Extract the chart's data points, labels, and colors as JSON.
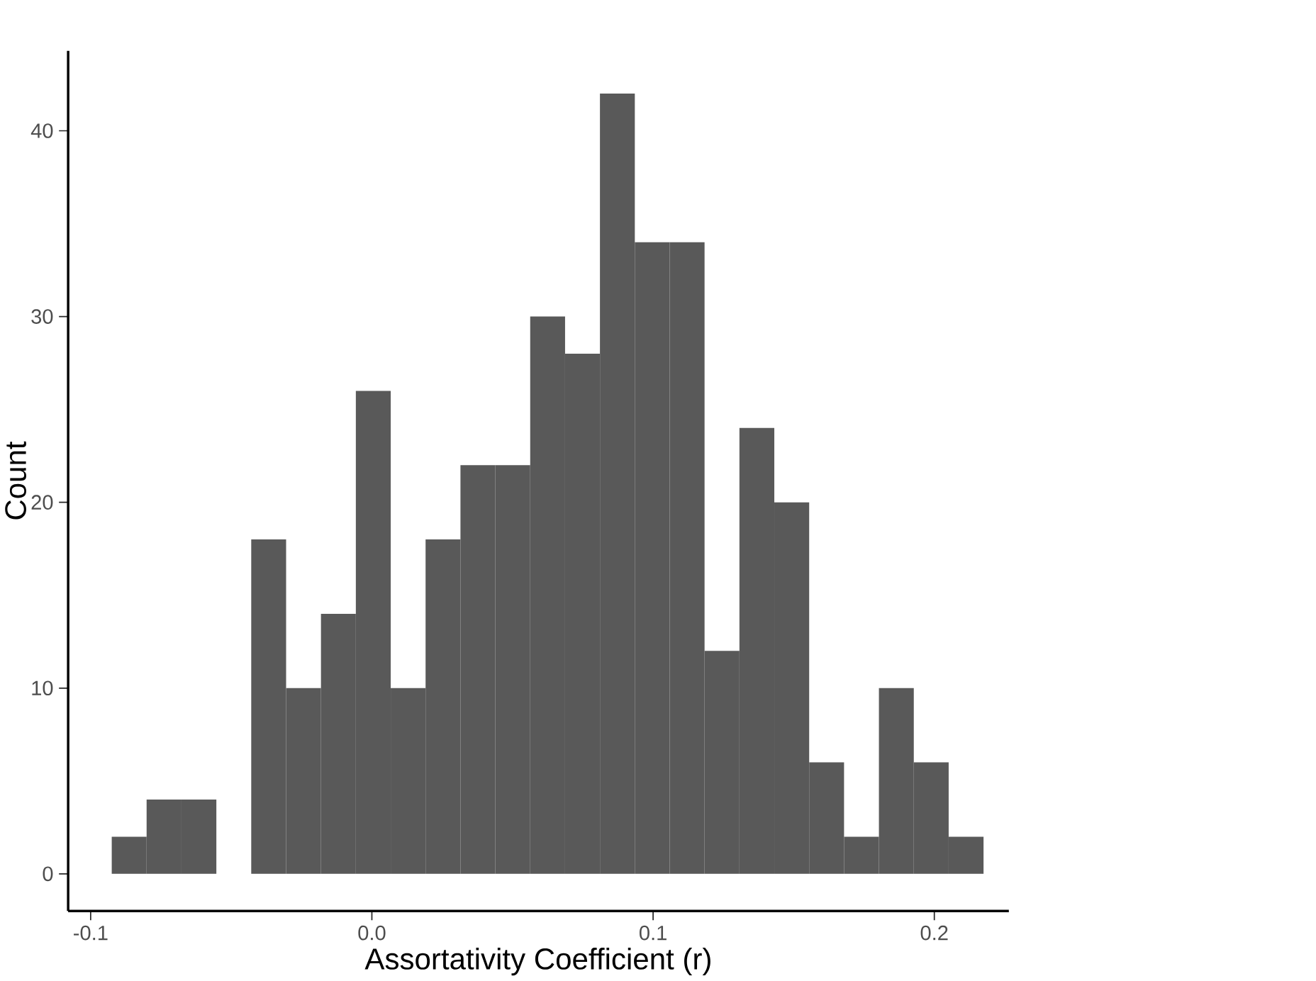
{
  "chart_data": {
    "type": "histogram",
    "xlabel": "Assortativity Coefficient (r)",
    "ylabel": "Count",
    "color": "#595959",
    "bins": [
      -0.0925,
      -0.0801,
      -0.0677,
      -0.0553,
      -0.0429,
      -0.0305,
      -0.0181,
      -0.0057,
      0.0067,
      0.0191,
      0.0315,
      0.0439,
      0.0563,
      0.0687,
      0.0811,
      0.0935,
      0.1059,
      0.1183,
      0.1307,
      0.1431,
      0.1555,
      0.1679,
      0.1803,
      0.1927,
      0.2051,
      0.2175
    ],
    "values": [
      2,
      4,
      4,
      0,
      18,
      10,
      14,
      26,
      10,
      18,
      22,
      22,
      30,
      28,
      42,
      34,
      34,
      12,
      24,
      20,
      6,
      2,
      10,
      6,
      2
    ],
    "xlim": [
      -0.108,
      0.2265
    ],
    "ylim": [
      -2,
      44.3
    ],
    "xticks": [
      {
        "value": -0.1,
        "label": "-0.1"
      },
      {
        "value": 0.0,
        "label": "0.0"
      },
      {
        "value": 0.1,
        "label": "0.1"
      },
      {
        "value": 0.2,
        "label": "0.2"
      }
    ],
    "yticks": [
      0,
      10,
      20,
      30,
      40
    ],
    "grid": false
  }
}
